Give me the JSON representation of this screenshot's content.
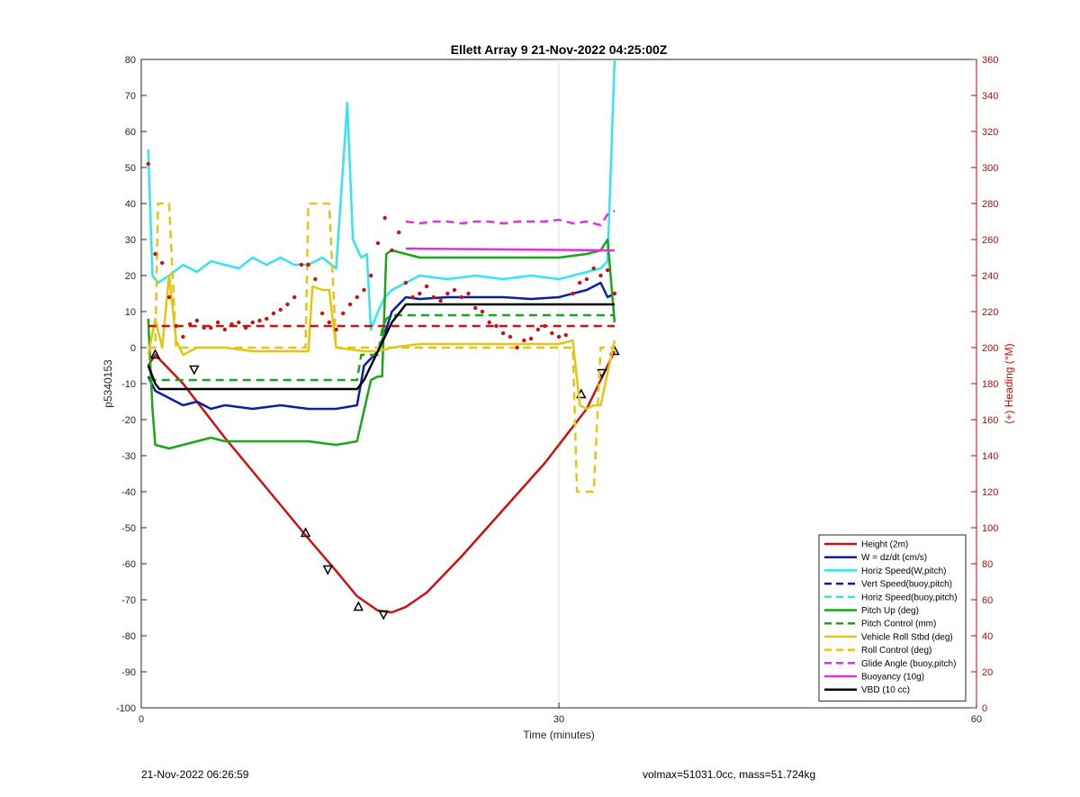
{
  "chart_data": {
    "type": "line",
    "title": "Ellett Array 9 21-Nov-2022 04:25:00Z",
    "xlabel": "Time (minutes)",
    "ylabel": "p5340153",
    "y2label": "(+) Heading (°M)",
    "xlim": [
      0,
      60
    ],
    "ylim": [
      -100,
      80
    ],
    "y2lim": [
      0,
      360
    ],
    "x_ticks": [
      "0",
      "30",
      "60"
    ],
    "y_ticks": [
      "80",
      "70",
      "60",
      "50",
      "40",
      "30",
      "20",
      "10",
      "0",
      "-10",
      "-20",
      "-30",
      "-40",
      "-50",
      "-60",
      "-70",
      "-80",
      "-90",
      "-100"
    ],
    "y2_ticks": [
      "360",
      "340",
      "320",
      "300",
      "280",
      "260",
      "240",
      "220",
      "200",
      "180",
      "160",
      "140",
      "120",
      "100",
      "80",
      "60",
      "40",
      "20",
      "0"
    ],
    "grid": "x-major",
    "legend_position": "bottom-right",
    "colors": {
      "red": "#cc1111",
      "blue": "#0a1fa8",
      "cyan": "#33e5ee",
      "green": "#19a619",
      "yellow": "#e6c414",
      "magenta": "#e030e0",
      "black": "#000000"
    },
    "series": [
      {
        "name": "Height (2m)",
        "color": "#cc1111",
        "style": "solid",
        "x": [
          0.5,
          1,
          3,
          6,
          9,
          12,
          14,
          15.5,
          17,
          18,
          19,
          20.5,
          23,
          26,
          29,
          32,
          33,
          34
        ],
        "y": [
          -5,
          -2,
          -10,
          -25,
          -39,
          -53,
          -62,
          -69,
          -73,
          -73.5,
          -72,
          -68,
          -58,
          -45,
          -32,
          -17,
          -9,
          -1
        ],
        "markers_x": [
          1,
          3.8,
          11.8,
          13.4,
          15.6,
          17.4,
          31.6,
          33.1,
          34
        ],
        "markers_y": [
          -2,
          -6,
          -51.5,
          -61.5,
          -72,
          -74,
          -13,
          -7,
          -1
        ]
      },
      {
        "name": "W = dz/dt (cm/s)",
        "color": "#0a1fa8",
        "style": "solid",
        "x": [
          0.5,
          1,
          2,
          3,
          4,
          5,
          6,
          8,
          10,
          12,
          14,
          15.5,
          16,
          16.5,
          17,
          17.5,
          18,
          19,
          20,
          22,
          24,
          26,
          28,
          30,
          32,
          33,
          33.5,
          34
        ],
        "y": [
          -8,
          -12,
          -14,
          -16,
          -15,
          -17,
          -16,
          -17,
          -16,
          -17,
          -17,
          -16,
          -5,
          -3,
          -1,
          4,
          10,
          14,
          13.5,
          14,
          14,
          14,
          13.5,
          14,
          16,
          18,
          14,
          15
        ]
      },
      {
        "name": "Horiz Speed(W,pitch)",
        "color": "#33e5ee",
        "style": "solid",
        "x": [
          0.5,
          0.8,
          1.2,
          2,
          3,
          4,
          5,
          6,
          7,
          8,
          9,
          10,
          11,
          12,
          13,
          14,
          14.8,
          15.2,
          15.8,
          16.2,
          16.5,
          17,
          17.5,
          18,
          19,
          20,
          22,
          24,
          26,
          28,
          30,
          32,
          33,
          33.5,
          34
        ],
        "y": [
          55,
          20,
          18,
          20,
          23,
          21,
          24,
          23,
          22,
          25,
          23,
          25,
          23,
          23,
          25,
          22,
          68,
          30,
          25,
          26,
          5,
          10,
          14,
          16,
          18,
          20,
          19,
          20,
          19,
          20,
          19,
          21,
          22,
          24,
          80
        ]
      },
      {
        "name": "Vert Speed(buoy,pitch)",
        "color": "#0a1fa8",
        "style": "dashed",
        "x": [],
        "y": []
      },
      {
        "name": "Horiz Speed(buoy,pitch)",
        "color": "#33e5ee",
        "style": "dashed",
        "x": [],
        "y": []
      },
      {
        "name": "Pitch Up (deg)",
        "color": "#19a619",
        "style": "solid",
        "x": [
          0.5,
          0.8,
          1,
          2,
          3,
          4,
          5,
          6,
          8,
          10,
          12,
          14,
          15.5,
          16.5,
          17,
          17.3,
          17.6,
          18,
          20,
          24,
          28,
          30,
          32,
          33,
          33.5,
          34
        ],
        "y": [
          8,
          -17,
          -27,
          -28,
          -27,
          -26,
          -25,
          -26,
          -26,
          -26,
          -26,
          -27,
          -26,
          -9,
          -8,
          -8,
          26,
          27,
          25,
          25,
          25,
          25,
          26,
          27,
          30,
          7
        ]
      },
      {
        "name": "Pitch Control (mm)",
        "color": "#19a619",
        "style": "dashed",
        "x": [
          0.5,
          1,
          15.5,
          15.8,
          16.5,
          17,
          17.3,
          17.6,
          18,
          34
        ],
        "y": [
          -9,
          -9,
          -9,
          -2,
          -2,
          -2,
          5,
          8,
          9,
          9
        ]
      },
      {
        "name": "Vehicle Roll Stbd (deg)",
        "color": "#e6c414",
        "style": "solid",
        "x": [
          0.5,
          1,
          1.5,
          2,
          2.5,
          3,
          4,
          6,
          8,
          10,
          12,
          12.3,
          13,
          13.5,
          14,
          16,
          17,
          18,
          20,
          24,
          28,
          30,
          31,
          31.5,
          32,
          32.5,
          33,
          34
        ],
        "y": [
          -2,
          8,
          0,
          20,
          2,
          -2,
          0,
          0,
          -1,
          -1,
          -1,
          17,
          16,
          16,
          0,
          -1,
          -1,
          0,
          1,
          1,
          1,
          1,
          2,
          -16,
          -17,
          -16,
          -16,
          2
        ]
      },
      {
        "name": "Roll Control (deg)",
        "color": "#e6c414",
        "style": "dashed",
        "x": [
          0.5,
          1,
          1.2,
          1.5,
          2,
          2.5,
          3,
          11.8,
          12,
          13,
          13.5,
          14,
          31,
          31.3,
          32,
          32.5,
          33,
          34
        ],
        "y": [
          0,
          0,
          40,
          40,
          40,
          0,
          0,
          0,
          40,
          40,
          40,
          0,
          0,
          -40,
          -40,
          -40,
          0,
          0
        ]
      },
      {
        "name": "Glide Angle (buoy,pitch)",
        "color": "#e030e0",
        "style": "dashed",
        "x": [
          19,
          20,
          21,
          22,
          23,
          24,
          25,
          26,
          27,
          28,
          29,
          30,
          31,
          32,
          33,
          33.5,
          34
        ],
        "y": [
          35,
          34.5,
          35,
          35,
          34.5,
          35,
          35,
          34.5,
          35,
          35,
          35,
          35.5,
          34.5,
          35,
          34,
          37,
          38
        ]
      },
      {
        "name": "Buoyancy (10g)",
        "color": "#e030e0",
        "style": "solid",
        "x": [
          19,
          34
        ],
        "y": [
          27.5,
          27
        ]
      },
      {
        "name": "VBD (10 cc)",
        "color": "#000000",
        "style": "solid",
        "x": [
          0.5,
          1,
          1.3,
          15.5,
          16,
          16.5,
          17,
          18,
          19,
          34
        ],
        "y": [
          -5,
          -10,
          -11.5,
          -11.5,
          -9,
          -5,
          -1,
          7,
          12,
          12
        ]
      },
      {
        "name": "",
        "color": "#cc1111",
        "style": "dashed",
        "axis": "right",
        "x": [
          0.5,
          34
        ],
        "y": [
          212,
          212
        ]
      },
      {
        "name": "",
        "color": "#cc1111",
        "style": "dotted",
        "axis": "right",
        "x": [
          0.5,
          1,
          1.5,
          2,
          2.5,
          3,
          3.5,
          4,
          4.5,
          5,
          5.5,
          6,
          6.5,
          7,
          7.5,
          8,
          8.5,
          9,
          9.5,
          10,
          10.5,
          11,
          11.5,
          12,
          12.5,
          13,
          13.5,
          14,
          14.5,
          15,
          15.5,
          16,
          16.5,
          17,
          17.5,
          18,
          18.5,
          19,
          19.5,
          20,
          20.5,
          21,
          21.5,
          22,
          22.5,
          23,
          23.5,
          24,
          24.5,
          25,
          25.5,
          26,
          26.5,
          27,
          27.5,
          28,
          28.5,
          29,
          29.5,
          30,
          30.5,
          31,
          31.5,
          32,
          32.5,
          33,
          33.5,
          34
        ],
        "y": [
          302,
          252,
          247,
          228,
          212,
          206,
          213,
          215,
          211,
          211,
          214,
          210,
          213,
          214,
          211,
          214,
          215,
          216,
          219,
          221,
          224,
          228,
          246,
          246,
          238,
          219,
          214,
          210,
          219,
          224,
          228,
          232,
          240,
          258,
          272,
          254,
          264,
          236,
          228,
          230,
          234,
          228,
          226,
          230,
          232,
          228,
          230,
          222,
          220,
          214,
          212,
          208,
          206,
          200,
          204,
          205,
          210,
          212,
          208,
          206,
          207,
          230,
          236,
          238,
          244,
          240,
          243,
          230
        ]
      }
    ]
  },
  "footer": {
    "timestamp": "21-Nov-2022 06:26:59",
    "info": "volmax=51031.0cc, mass=51.724kg"
  }
}
